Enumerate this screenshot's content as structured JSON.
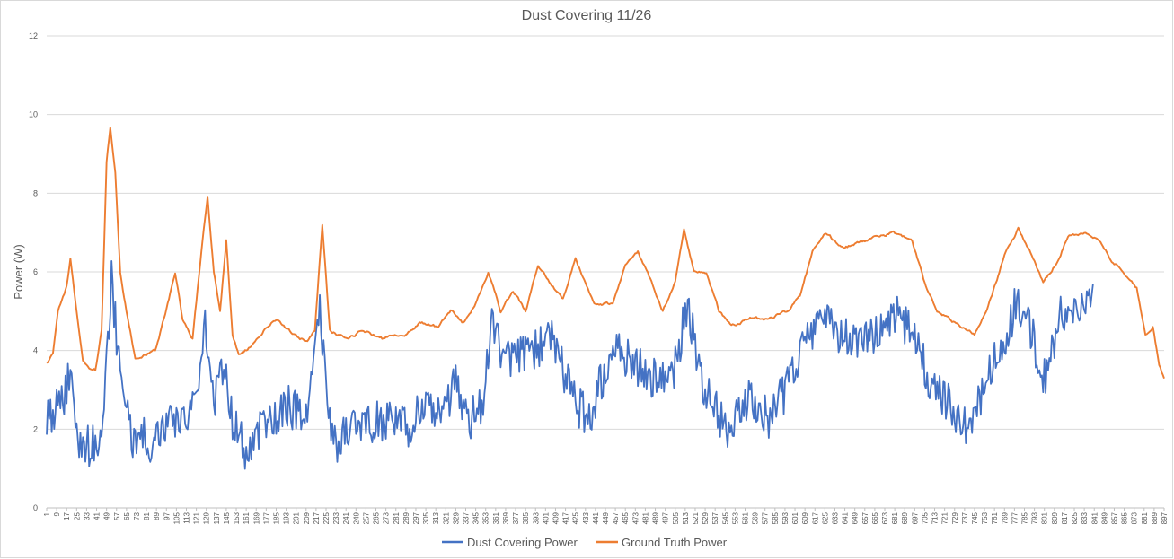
{
  "chart_data": {
    "type": "line",
    "title": "Dust Covering 11/26",
    "xlabel": "",
    "ylabel": "Power (W)",
    "ylim": [
      0,
      12
    ],
    "yticks": [
      "0",
      "2",
      "4",
      "6",
      "8",
      "10",
      "12"
    ],
    "xrange": [
      1,
      897
    ],
    "x_tick_start": 1,
    "x_tick_step": 8,
    "gridlines": "horizontal",
    "legend_position": "bottom",
    "series": [
      {
        "name": "Dust Covering Power",
        "color": "#4472C4",
        "noise": 0.55,
        "key_points": [
          [
            1,
            2.3
          ],
          [
            8,
            2.5
          ],
          [
            15,
            2.8
          ],
          [
            20,
            3.5
          ],
          [
            25,
            1.8
          ],
          [
            35,
            1.6
          ],
          [
            42,
            1.5
          ],
          [
            48,
            3.0
          ],
          [
            53,
            5.8
          ],
          [
            58,
            4.0
          ],
          [
            63,
            2.5
          ],
          [
            70,
            1.8
          ],
          [
            85,
            1.7
          ],
          [
            100,
            2.3
          ],
          [
            110,
            2.0
          ],
          [
            120,
            2.5
          ],
          [
            128,
            4.8
          ],
          [
            135,
            2.8
          ],
          [
            143,
            3.5
          ],
          [
            150,
            2.2
          ],
          [
            160,
            1.5
          ],
          [
            175,
            2.2
          ],
          [
            195,
            2.6
          ],
          [
            210,
            2.3
          ],
          [
            220,
            5.0
          ],
          [
            228,
            2.3
          ],
          [
            235,
            1.6
          ],
          [
            250,
            2.2
          ],
          [
            270,
            2.2
          ],
          [
            290,
            2.0
          ],
          [
            300,
            2.5
          ],
          [
            315,
            2.3
          ],
          [
            330,
            3.2
          ],
          [
            340,
            2.2
          ],
          [
            350,
            2.6
          ],
          [
            358,
            4.8
          ],
          [
            368,
            3.8
          ],
          [
            380,
            3.8
          ],
          [
            395,
            4.0
          ],
          [
            405,
            4.5
          ],
          [
            420,
            3.0
          ],
          [
            435,
            2.2
          ],
          [
            445,
            3.2
          ],
          [
            460,
            4.0
          ],
          [
            475,
            3.6
          ],
          [
            490,
            3.2
          ],
          [
            505,
            3.6
          ],
          [
            515,
            5.2
          ],
          [
            525,
            3.3
          ],
          [
            540,
            2.3
          ],
          [
            550,
            2.0
          ],
          [
            565,
            2.8
          ],
          [
            580,
            2.3
          ],
          [
            590,
            2.8
          ],
          [
            600,
            3.4
          ],
          [
            610,
            4.5
          ],
          [
            625,
            4.7
          ],
          [
            640,
            4.4
          ],
          [
            660,
            4.3
          ],
          [
            680,
            5.0
          ],
          [
            700,
            4.3
          ],
          [
            710,
            3.0
          ],
          [
            725,
            2.7
          ],
          [
            740,
            2.0
          ],
          [
            750,
            2.8
          ],
          [
            765,
            4.0
          ],
          [
            780,
            5.3
          ],
          [
            790,
            4.6
          ],
          [
            800,
            3.2
          ],
          [
            815,
            5.0
          ],
          [
            830,
            5.3
          ],
          [
            840,
            5.7
          ]
        ]
      },
      {
        "name": "Ground Truth Power",
        "color": "#ED7D31",
        "noise": 0.1,
        "key_points": [
          [
            1,
            3.7
          ],
          [
            6,
            3.9
          ],
          [
            10,
            5.0
          ],
          [
            17,
            5.6
          ],
          [
            20,
            6.3
          ],
          [
            25,
            5.0
          ],
          [
            30,
            3.8
          ],
          [
            35,
            3.5
          ],
          [
            40,
            3.5
          ],
          [
            45,
            4.5
          ],
          [
            49,
            8.8
          ],
          [
            52,
            9.7
          ],
          [
            56,
            8.5
          ],
          [
            60,
            6.0
          ],
          [
            65,
            5.0
          ],
          [
            72,
            3.8
          ],
          [
            80,
            3.9
          ],
          [
            88,
            4.0
          ],
          [
            95,
            4.8
          ],
          [
            104,
            6.0
          ],
          [
            110,
            4.8
          ],
          [
            118,
            4.3
          ],
          [
            125,
            6.5
          ],
          [
            130,
            7.9
          ],
          [
            135,
            6.0
          ],
          [
            140,
            5.0
          ],
          [
            145,
            6.8
          ],
          [
            150,
            4.4
          ],
          [
            155,
            3.9
          ],
          [
            165,
            4.1
          ],
          [
            175,
            4.5
          ],
          [
            185,
            4.8
          ],
          [
            200,
            4.4
          ],
          [
            210,
            4.2
          ],
          [
            216,
            4.5
          ],
          [
            222,
            7.2
          ],
          [
            228,
            4.5
          ],
          [
            240,
            4.3
          ],
          [
            255,
            4.5
          ],
          [
            270,
            4.3
          ],
          [
            290,
            4.4
          ],
          [
            300,
            4.7
          ],
          [
            315,
            4.6
          ],
          [
            325,
            5.0
          ],
          [
            335,
            4.7
          ],
          [
            345,
            5.2
          ],
          [
            355,
            6.0
          ],
          [
            365,
            5.0
          ],
          [
            375,
            5.5
          ],
          [
            385,
            5.0
          ],
          [
            395,
            6.2
          ],
          [
            405,
            5.7
          ],
          [
            415,
            5.3
          ],
          [
            425,
            6.3
          ],
          [
            440,
            5.2
          ],
          [
            455,
            5.2
          ],
          [
            465,
            6.2
          ],
          [
            475,
            6.5
          ],
          [
            485,
            5.8
          ],
          [
            495,
            5.0
          ],
          [
            505,
            5.8
          ],
          [
            512,
            7.1
          ],
          [
            520,
            6.0
          ],
          [
            530,
            6.0
          ],
          [
            540,
            5.0
          ],
          [
            550,
            4.6
          ],
          [
            565,
            4.8
          ],
          [
            580,
            4.8
          ],
          [
            595,
            5.0
          ],
          [
            605,
            5.4
          ],
          [
            615,
            6.5
          ],
          [
            625,
            7.0
          ],
          [
            640,
            6.6
          ],
          [
            660,
            6.8
          ],
          [
            680,
            7.0
          ],
          [
            695,
            6.8
          ],
          [
            705,
            5.7
          ],
          [
            715,
            5.0
          ],
          [
            730,
            4.7
          ],
          [
            745,
            4.4
          ],
          [
            755,
            5.0
          ],
          [
            770,
            6.5
          ],
          [
            780,
            7.1
          ],
          [
            790,
            6.5
          ],
          [
            800,
            5.7
          ],
          [
            810,
            6.2
          ],
          [
            820,
            6.9
          ],
          [
            835,
            7.0
          ],
          [
            845,
            6.8
          ],
          [
            855,
            6.3
          ],
          [
            865,
            6.0
          ],
          [
            875,
            5.6
          ],
          [
            882,
            4.4
          ],
          [
            888,
            4.6
          ],
          [
            893,
            3.6
          ],
          [
            897,
            3.3
          ]
        ]
      }
    ]
  }
}
